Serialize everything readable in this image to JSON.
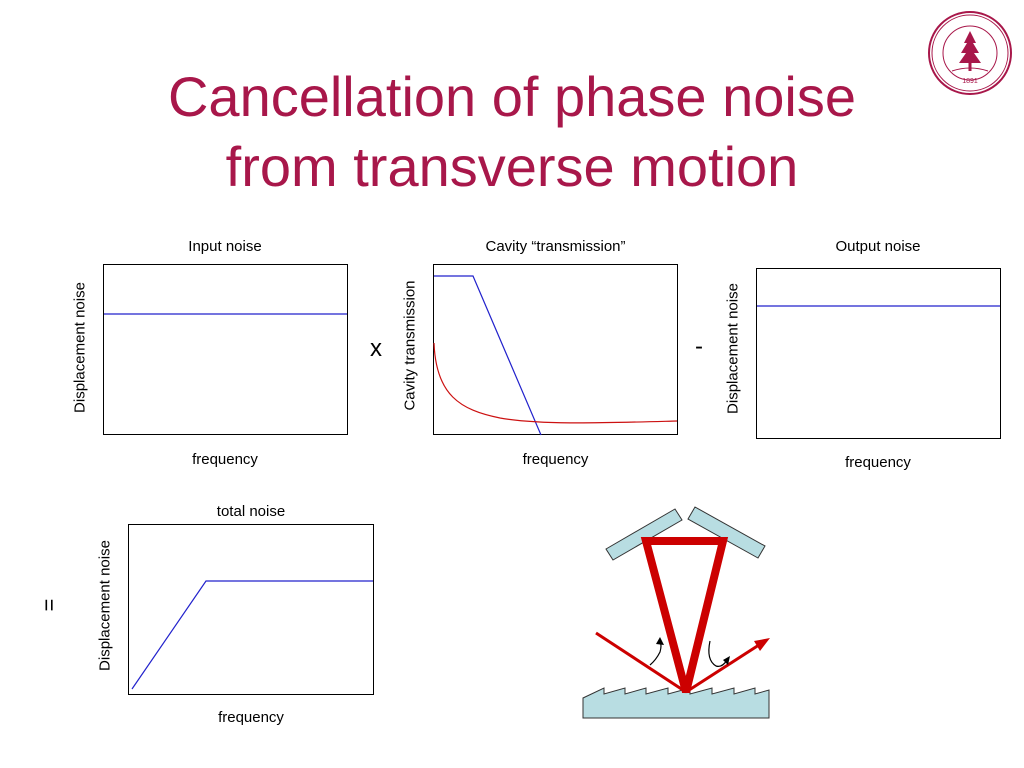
{
  "slide": {
    "title_line1": "Cancellation of phase noise",
    "title_line2": "from transverse motion"
  },
  "panels": {
    "input": {
      "title": "Input noise",
      "ylabel": "Displacement noise",
      "xlabel": "frequency"
    },
    "cavity": {
      "title": "Cavity “transmission”",
      "ylabel": "Cavity transmission",
      "xlabel": "frequency"
    },
    "output": {
      "title": "Output noise",
      "ylabel": "Displacement noise",
      "xlabel": "frequency"
    },
    "total": {
      "title": "total noise",
      "ylabel": "Displacement noise",
      "xlabel": "frequency"
    }
  },
  "operators": {
    "times": "x",
    "minus": "-",
    "equals": "="
  },
  "colors": {
    "title": "#a8174a",
    "blue_line": "#2222cc",
    "red_line": "#cc1111",
    "beam": "#cc0000",
    "mirror": "#b8dde2"
  },
  "seal": {
    "text": "LELAND STANFORD JUNIOR UNIVERSITY",
    "year": "1891"
  },
  "chart_data": [
    {
      "type": "line",
      "title": "Input noise",
      "xlabel": "frequency",
      "ylabel": "Displacement noise",
      "series": [
        {
          "color": "blue",
          "shape": "flat"
        }
      ]
    },
    {
      "type": "line",
      "title": "Cavity “transmission”",
      "xlabel": "frequency",
      "ylabel": "Cavity transmission",
      "series": [
        {
          "color": "blue",
          "shape": "flat then falling"
        },
        {
          "color": "red",
          "shape": "decaying"
        }
      ]
    },
    {
      "type": "line",
      "title": "Output noise",
      "xlabel": "frequency",
      "ylabel": "Displacement noise",
      "series": [
        {
          "color": "blue",
          "shape": "flat"
        }
      ]
    },
    {
      "type": "line",
      "title": "total noise",
      "xlabel": "frequency",
      "ylabel": "Displacement noise",
      "series": [
        {
          "color": "blue",
          "shape": "rising then flat"
        }
      ]
    }
  ]
}
